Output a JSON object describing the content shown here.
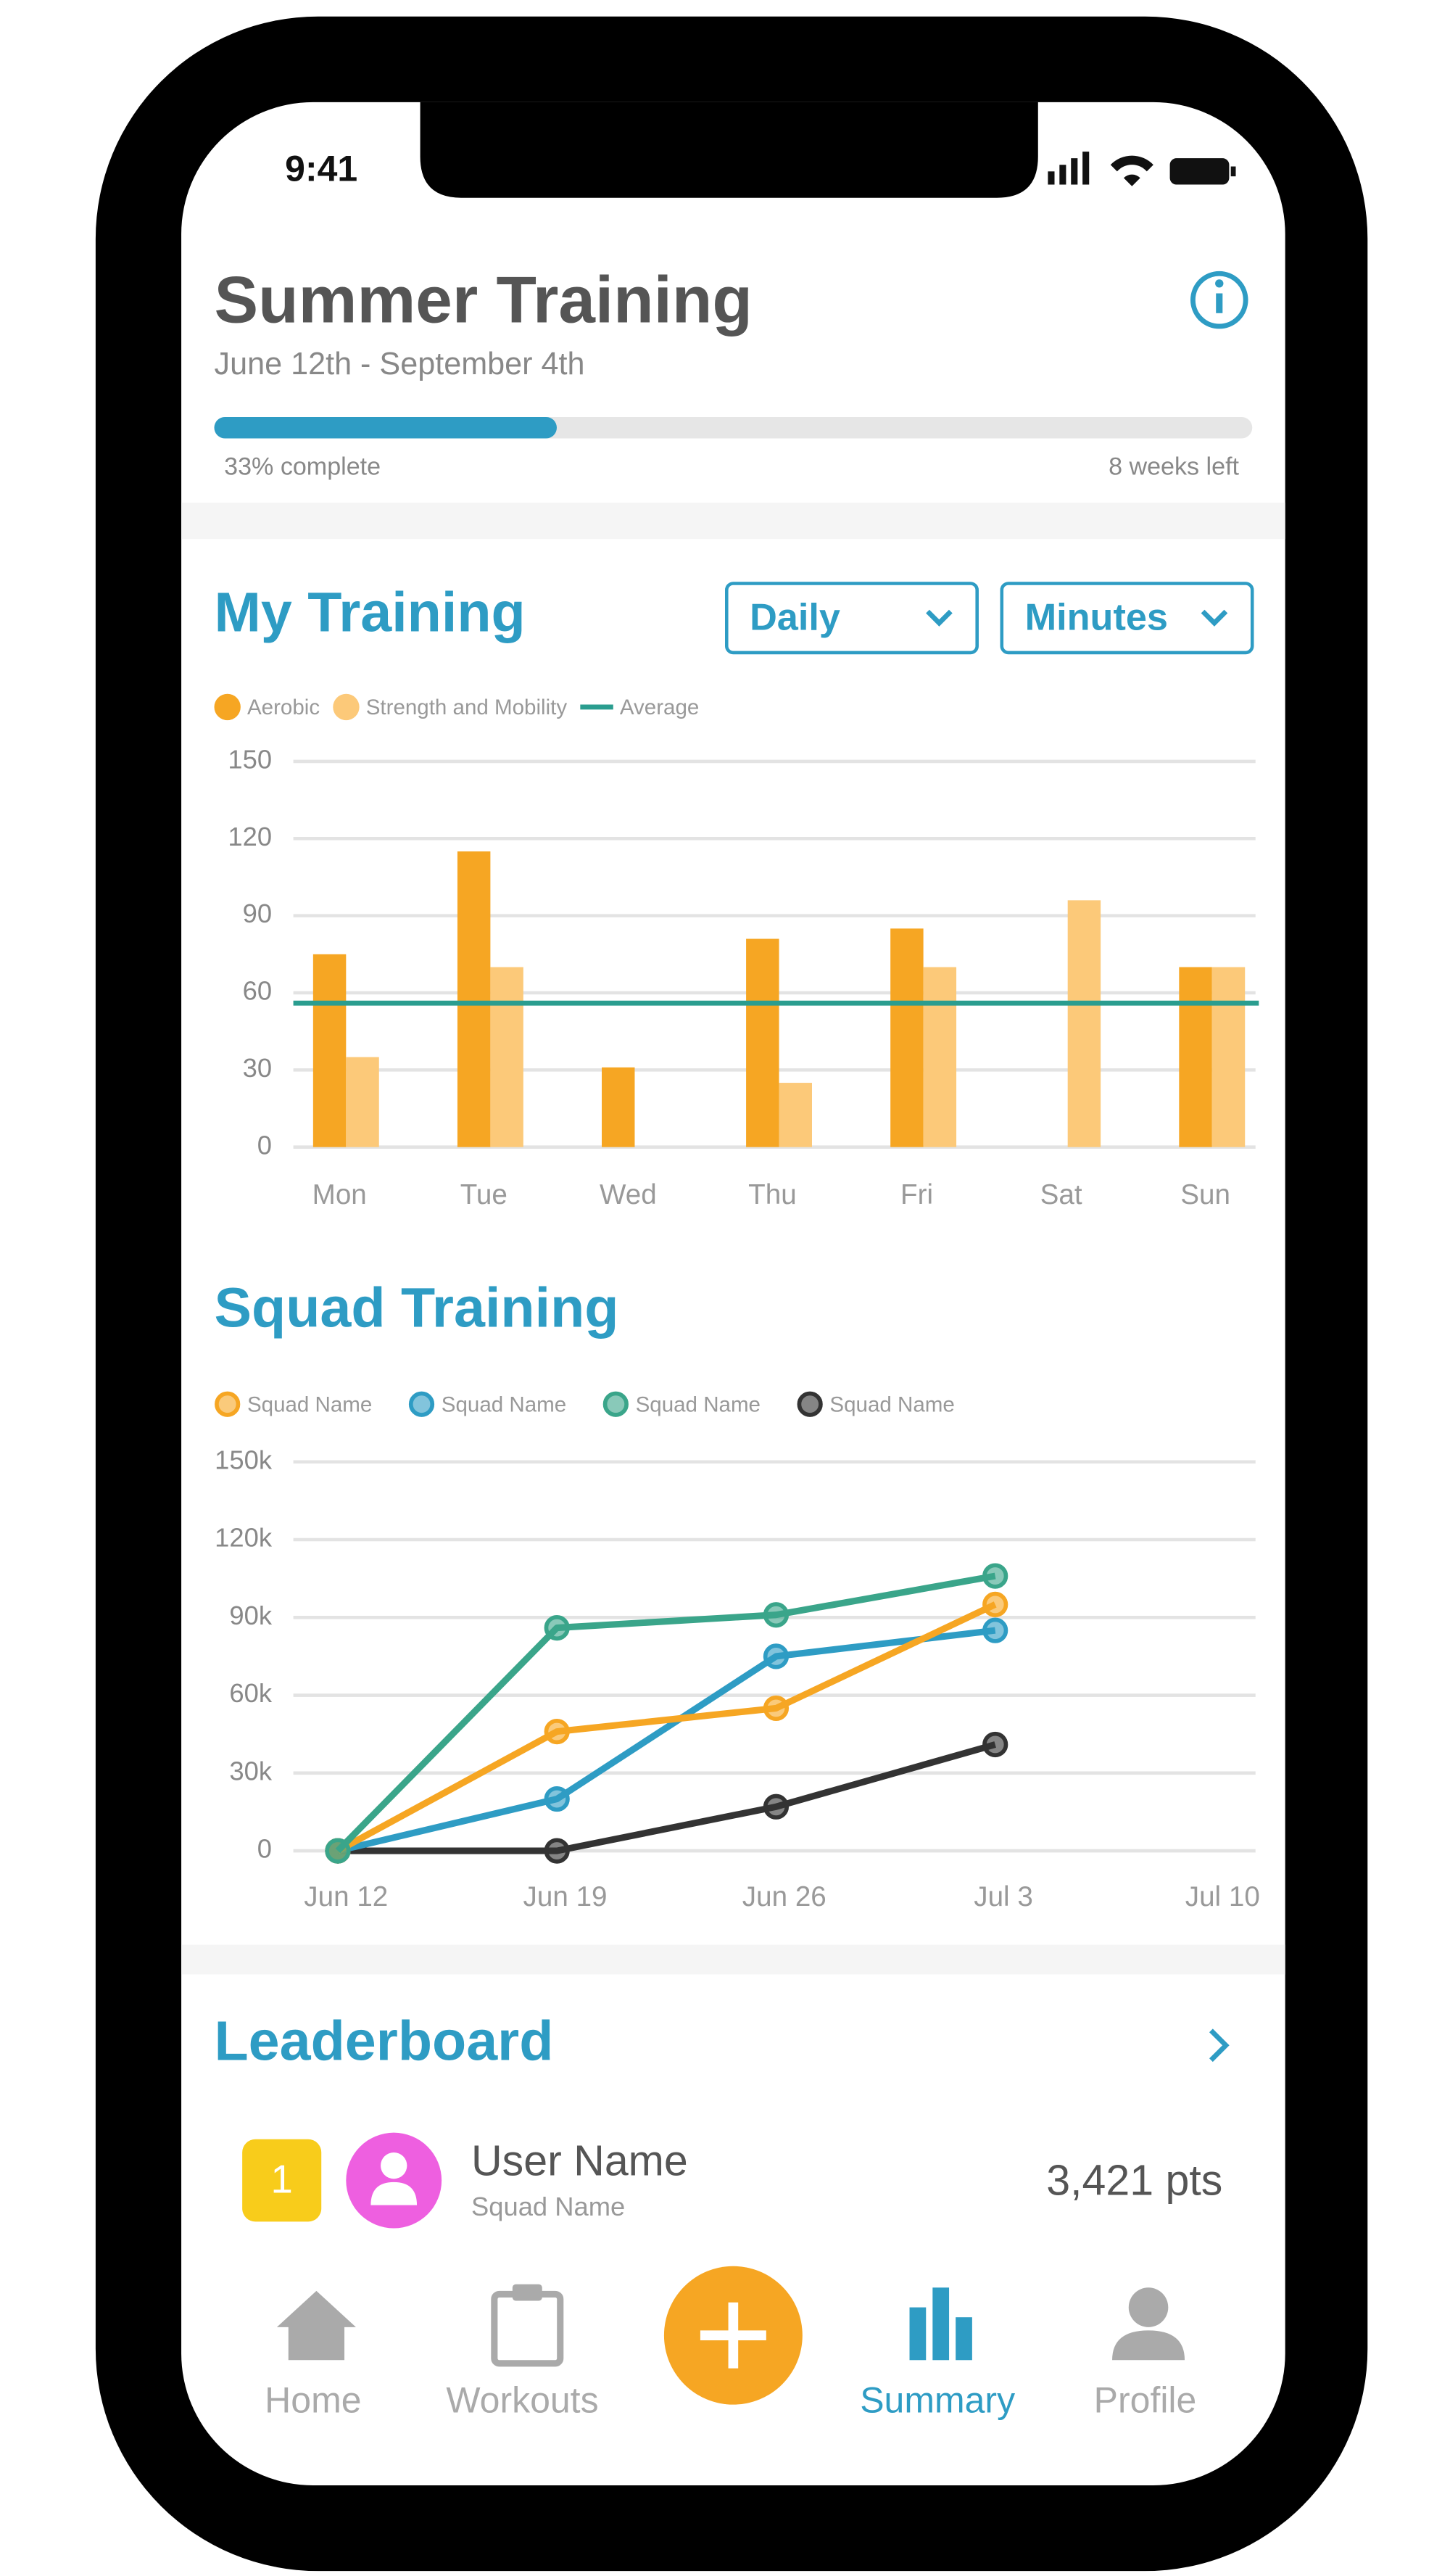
{
  "status": {
    "time": "9:41"
  },
  "header": {
    "title": "Summer Training",
    "dates": "June 12th - September 4th",
    "progress": {
      "value": 33,
      "label": "33% complete"
    },
    "remaining": "8 weeks left"
  },
  "my_training": {
    "title": "My Training",
    "period": "Daily",
    "unit": "Minutes"
  },
  "squad_training": {
    "title": "Squad Training"
  },
  "chart_data": [
    {
      "type": "bar",
      "categories": [
        "Mon",
        "Tue",
        "Wed",
        "Thu",
        "Fri",
        "Sat",
        "Sun"
      ],
      "series": [
        {
          "name": "Aerobic",
          "color": "#f6a623",
          "values": [
            75,
            115,
            31,
            81,
            85,
            0,
            70
          ]
        },
        {
          "name": "Strength and Mobility",
          "color": "#fcc979",
          "values": [
            35,
            70,
            0,
            25,
            70,
            96,
            70
          ]
        }
      ],
      "average": {
        "name": "Average",
        "value": 56,
        "color": "#2a9d8f"
      },
      "ylim": [
        0,
        150
      ],
      "yticks": [
        0,
        30,
        60,
        90,
        120,
        150
      ],
      "grid": true
    },
    {
      "type": "line",
      "categories": [
        "Jun 12",
        "Jun 19",
        "Jun 26",
        "Jul 3",
        "Jul 10"
      ],
      "series": [
        {
          "name": "Squad Name",
          "color": "#f6a623",
          "values": [
            0,
            46000,
            55000,
            95000,
            null
          ]
        },
        {
          "name": "Squad Name",
          "color": "#2e9cc4",
          "values": [
            0,
            20000,
            75000,
            85000,
            null
          ]
        },
        {
          "name": "Squad Name",
          "color": "#3aa58a",
          "values": [
            0,
            86000,
            91000,
            106000,
            null
          ]
        },
        {
          "name": "Squad Name",
          "color": "#333333",
          "values": [
            0,
            0,
            17000,
            41000,
            null
          ]
        }
      ],
      "ylim": [
        0,
        150000
      ],
      "yticks": [
        0,
        {
          "value": 30000,
          "label": "30k"
        },
        {
          "value": 60000,
          "label": "60k"
        },
        {
          "value": 90000,
          "label": "90k"
        },
        {
          "value": 120000,
          "label": "120k"
        },
        {
          "value": 150000,
          "label": "150k"
        }
      ],
      "grid": true
    }
  ],
  "leaderboard": {
    "title": "Leaderboard",
    "rows": [
      {
        "rank": "1",
        "name": "User Name",
        "squad": "Squad Name",
        "points": "3,421 pts"
      }
    ]
  },
  "nav": [
    "Home",
    "Workouts",
    "Summary",
    "Profile"
  ]
}
